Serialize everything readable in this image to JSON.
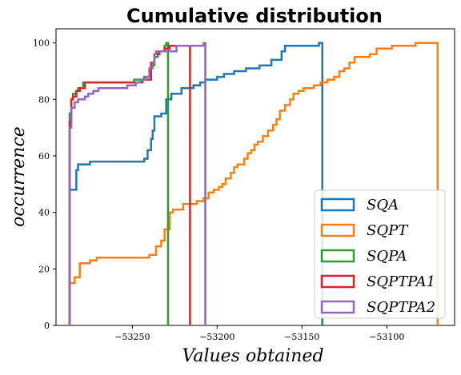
{
  "chart_data": {
    "type": "line",
    "step": true,
    "title": "Cumulative distribution",
    "xlabel": "Values obtained",
    "ylabel": "occurrence",
    "xlim": [
      -53295,
      -53060
    ],
    "ylim": [
      0,
      105
    ],
    "xticks": [
      -53250,
      -53200,
      -53150,
      -53100
    ],
    "xtick_labels": [
      "−53250",
      "−53200",
      "−53150",
      "−53100"
    ],
    "yticks": [
      0,
      20,
      40,
      60,
      80,
      100
    ],
    "ytick_labels": [
      "0",
      "20",
      "40",
      "60",
      "80",
      "100"
    ],
    "grid": false,
    "legend_position": "lower-right",
    "series": [
      {
        "name": "SQA",
        "color": "#1f77b4",
        "points": [
          [
            -53287,
            0
          ],
          [
            -53287,
            48
          ],
          [
            -53283,
            48
          ],
          [
            -53283,
            55
          ],
          [
            -53282,
            55
          ],
          [
            -53282,
            57
          ],
          [
            -53275,
            57
          ],
          [
            -53275,
            58
          ],
          [
            -53243,
            58
          ],
          [
            -53243,
            59
          ],
          [
            -53241,
            59
          ],
          [
            -53241,
            62
          ],
          [
            -53239,
            62
          ],
          [
            -53239,
            66
          ],
          [
            -53238,
            66
          ],
          [
            -53238,
            69
          ],
          [
            -53237,
            69
          ],
          [
            -53237,
            74
          ],
          [
            -53233,
            74
          ],
          [
            -53233,
            75
          ],
          [
            -53230,
            75
          ],
          [
            -53230,
            80
          ],
          [
            -53227,
            80
          ],
          [
            -53227,
            82
          ],
          [
            -53221,
            82
          ],
          [
            -53221,
            84
          ],
          [
            -53214,
            84
          ],
          [
            -53214,
            85
          ],
          [
            -53210,
            85
          ],
          [
            -53210,
            86
          ],
          [
            -53207,
            86
          ],
          [
            -53207,
            87
          ],
          [
            -53200,
            87
          ],
          [
            -53200,
            88
          ],
          [
            -53196,
            88
          ],
          [
            -53196,
            89
          ],
          [
            -53190,
            89
          ],
          [
            -53190,
            90
          ],
          [
            -53183,
            90
          ],
          [
            -53183,
            91
          ],
          [
            -53175,
            91
          ],
          [
            -53175,
            92
          ],
          [
            -53168,
            92
          ],
          [
            -53168,
            94
          ],
          [
            -53162,
            94
          ],
          [
            -53162,
            97
          ],
          [
            -53160,
            97
          ],
          [
            -53160,
            99
          ],
          [
            -53140,
            99
          ],
          [
            -53140,
            100
          ],
          [
            -53138,
            100
          ],
          [
            -53138,
            0
          ]
        ]
      },
      {
        "name": "SQPT",
        "color": "#ff7f0e",
        "points": [
          [
            -53287,
            0
          ],
          [
            -53287,
            15
          ],
          [
            -53284,
            15
          ],
          [
            -53284,
            17
          ],
          [
            -53281,
            17
          ],
          [
            -53281,
            22
          ],
          [
            -53275,
            22
          ],
          [
            -53275,
            23
          ],
          [
            -53271,
            23
          ],
          [
            -53271,
            24
          ],
          [
            -53240,
            24
          ],
          [
            -53240,
            25
          ],
          [
            -53236,
            25
          ],
          [
            -53236,
            28
          ],
          [
            -53233,
            28
          ],
          [
            -53233,
            30
          ],
          [
            -53231,
            30
          ],
          [
            -53231,
            34
          ],
          [
            -53228,
            34
          ],
          [
            -53228,
            40
          ],
          [
            -53226,
            40
          ],
          [
            -53226,
            41
          ],
          [
            -53220,
            41
          ],
          [
            -53220,
            43
          ],
          [
            -53212,
            43
          ],
          [
            -53212,
            44
          ],
          [
            -53208,
            44
          ],
          [
            -53208,
            45
          ],
          [
            -53205,
            45
          ],
          [
            -53205,
            47
          ],
          [
            -53202,
            47
          ],
          [
            -53202,
            48
          ],
          [
            -53199,
            48
          ],
          [
            -53199,
            49
          ],
          [
            -53197,
            49
          ],
          [
            -53197,
            50
          ],
          [
            -53195,
            50
          ],
          [
            -53195,
            52
          ],
          [
            -53192,
            52
          ],
          [
            -53192,
            54
          ],
          [
            -53190,
            54
          ],
          [
            -53190,
            56
          ],
          [
            -53188,
            56
          ],
          [
            -53188,
            57
          ],
          [
            -53184,
            57
          ],
          [
            -53184,
            59
          ],
          [
            -53182,
            59
          ],
          [
            -53182,
            61
          ],
          [
            -53180,
            61
          ],
          [
            -53180,
            62
          ],
          [
            -53178,
            62
          ],
          [
            -53178,
            64
          ],
          [
            -53176,
            64
          ],
          [
            -53176,
            65
          ],
          [
            -53173,
            65
          ],
          [
            -53173,
            67
          ],
          [
            -53170,
            67
          ],
          [
            -53170,
            69
          ],
          [
            -53167,
            69
          ],
          [
            -53167,
            71
          ],
          [
            -53165,
            71
          ],
          [
            -53165,
            73
          ],
          [
            -53163,
            73
          ],
          [
            -53163,
            76
          ],
          [
            -53160,
            76
          ],
          [
            -53160,
            78
          ],
          [
            -53157,
            78
          ],
          [
            -53157,
            80
          ],
          [
            -53155,
            80
          ],
          [
            -53155,
            82
          ],
          [
            -53152,
            82
          ],
          [
            -53152,
            83
          ],
          [
            -53149,
            83
          ],
          [
            -53149,
            84
          ],
          [
            -53143,
            84
          ],
          [
            -53143,
            85
          ],
          [
            -53139,
            85
          ],
          [
            -53139,
            86
          ],
          [
            -53135,
            86
          ],
          [
            -53135,
            87
          ],
          [
            -53131,
            87
          ],
          [
            -53131,
            88
          ],
          [
            -53128,
            88
          ],
          [
            -53128,
            90
          ],
          [
            -53125,
            90
          ],
          [
            -53125,
            91
          ],
          [
            -53122,
            91
          ],
          [
            -53122,
            93
          ],
          [
            -53119,
            93
          ],
          [
            -53119,
            95
          ],
          [
            -53110,
            95
          ],
          [
            -53110,
            96
          ],
          [
            -53106,
            96
          ],
          [
            -53106,
            98
          ],
          [
            -53097,
            98
          ],
          [
            -53097,
            99
          ],
          [
            -53083,
            99
          ],
          [
            -53083,
            100
          ],
          [
            -53070,
            100
          ],
          [
            -53070,
            0
          ]
        ]
      },
      {
        "name": "SQPA",
        "color": "#2ca02c",
        "points": [
          [
            -53287,
            0
          ],
          [
            -53287,
            75
          ],
          [
            -53286,
            75
          ],
          [
            -53286,
            80
          ],
          [
            -53285,
            80
          ],
          [
            -53285,
            82
          ],
          [
            -53283,
            82
          ],
          [
            -53283,
            83
          ],
          [
            -53282,
            83
          ],
          [
            -53282,
            84
          ],
          [
            -53279,
            84
          ],
          [
            -53279,
            86
          ],
          [
            -53249,
            86
          ],
          [
            -53249,
            87
          ],
          [
            -53243,
            87
          ],
          [
            -53243,
            88
          ],
          [
            -53239,
            88
          ],
          [
            -53239,
            92
          ],
          [
            -53237,
            92
          ],
          [
            -53237,
            95
          ],
          [
            -53235,
            95
          ],
          [
            -53235,
            97
          ],
          [
            -53231,
            97
          ],
          [
            -53231,
            99
          ],
          [
            -53230,
            99
          ],
          [
            -53230,
            100
          ],
          [
            -53229,
            100
          ],
          [
            -53229,
            0
          ]
        ]
      },
      {
        "name": "SQPTPA1",
        "color": "#d62728",
        "points": [
          [
            -53287,
            0
          ],
          [
            -53287,
            72
          ],
          [
            -53286,
            72
          ],
          [
            -53286,
            80
          ],
          [
            -53285,
            80
          ],
          [
            -53285,
            81
          ],
          [
            -53283,
            81
          ],
          [
            -53283,
            83
          ],
          [
            -53281,
            83
          ],
          [
            -53281,
            84
          ],
          [
            -53278,
            84
          ],
          [
            -53278,
            86
          ],
          [
            -53244,
            86
          ],
          [
            -53244,
            87
          ],
          [
            -53239,
            87
          ],
          [
            -53239,
            93
          ],
          [
            -53237,
            93
          ],
          [
            -53237,
            96
          ],
          [
            -53234,
            96
          ],
          [
            -53234,
            97
          ],
          [
            -53231,
            97
          ],
          [
            -53231,
            98
          ],
          [
            -53228,
            98
          ],
          [
            -53228,
            99
          ],
          [
            -53216,
            99
          ],
          [
            -53216,
            0
          ]
        ]
      },
      {
        "name": "SQPTPA2",
        "color": "#9467bd",
        "points": [
          [
            -53287,
            0
          ],
          [
            -53287,
            70
          ],
          [
            -53286,
            70
          ],
          [
            -53286,
            77
          ],
          [
            -53284,
            77
          ],
          [
            -53284,
            79
          ],
          [
            -53282,
            79
          ],
          [
            -53282,
            80
          ],
          [
            -53278,
            80
          ],
          [
            -53278,
            81
          ],
          [
            -53276,
            81
          ],
          [
            -53276,
            82
          ],
          [
            -53273,
            82
          ],
          [
            -53273,
            83
          ],
          [
            -53270,
            83
          ],
          [
            -53270,
            84
          ],
          [
            -53253,
            84
          ],
          [
            -53253,
            85
          ],
          [
            -53248,
            85
          ],
          [
            -53248,
            86
          ],
          [
            -53245,
            86
          ],
          [
            -53245,
            87
          ],
          [
            -53242,
            87
          ],
          [
            -53242,
            88
          ],
          [
            -53240,
            88
          ],
          [
            -53240,
            91
          ],
          [
            -53238,
            91
          ],
          [
            -53238,
            93
          ],
          [
            -53237,
            93
          ],
          [
            -53237,
            96
          ],
          [
            -53236,
            96
          ],
          [
            -53236,
            97
          ],
          [
            -53224,
            97
          ],
          [
            -53224,
            99
          ],
          [
            -53208,
            99
          ],
          [
            -53208,
            100
          ],
          [
            -53207,
            100
          ],
          [
            -53207,
            0
          ]
        ]
      }
    ]
  }
}
